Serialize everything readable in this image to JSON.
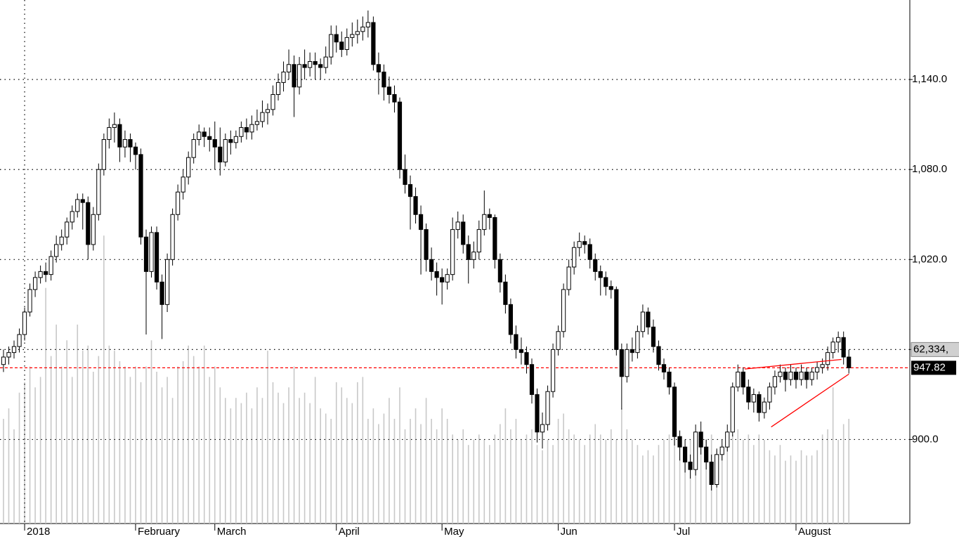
{
  "chart_data": {
    "type": "candlestick",
    "xlim": [
      -0.66,
      171.54
    ],
    "ylim": [
      844,
      1193
    ],
    "volume_lim": [
      0,
      100
    ],
    "xticks": [
      {
        "value": 4,
        "label": "2018"
      },
      {
        "value": 25,
        "label": "February"
      },
      {
        "value": 40,
        "label": "March"
      },
      {
        "value": 63,
        "label": "April"
      },
      {
        "value": 83,
        "label": "May"
      },
      {
        "value": 105,
        "label": "Jun"
      },
      {
        "value": 127,
        "label": "Jul"
      },
      {
        "value": 150,
        "label": "August"
      }
    ],
    "yticks": [
      {
        "value": 900,
        "label": "900.0"
      },
      {
        "value": 960
      },
      {
        "value": 1020,
        "label": "1,020.0"
      },
      {
        "value": 1080,
        "label": "1,080.0"
      },
      {
        "value": 1140,
        "label": "1,140.0"
      }
    ],
    "grid": true,
    "up_color": "#ffffff",
    "down_color": "#000000",
    "volume_color": "#c8c8c8",
    "line_color": "#ff0000",
    "volume_label": "62,334,",
    "candles": [
      [
        950,
        960,
        945,
        955
      ],
      [
        955,
        962,
        950,
        958
      ],
      [
        958,
        966,
        954,
        962
      ],
      [
        962,
        974,
        958,
        970
      ],
      [
        970,
        988,
        966,
        985
      ],
      [
        985,
        1004,
        982,
        1000
      ],
      [
        1000,
        1012,
        995,
        1008
      ],
      [
        1008,
        1016,
        1004,
        1012
      ],
      [
        1012,
        1018,
        1005,
        1010
      ],
      [
        1010,
        1026,
        1006,
        1022
      ],
      [
        1022,
        1036,
        1018,
        1030
      ],
      [
        1030,
        1040,
        1026,
        1035
      ],
      [
        1035,
        1048,
        1030,
        1045
      ],
      [
        1045,
        1056,
        1040,
        1052
      ],
      [
        1052,
        1064,
        1048,
        1060
      ],
      [
        1060,
        1064,
        1040,
        1058
      ],
      [
        1058,
        1062,
        1020,
        1030
      ],
      [
        1030,
        1055,
        1026,
        1050
      ],
      [
        1050,
        1084,
        1046,
        1080
      ],
      [
        1080,
        1104,
        1076,
        1100
      ],
      [
        1100,
        1114,
        1094,
        1108
      ],
      [
        1108,
        1118,
        1098,
        1110
      ],
      [
        1110,
        1114,
        1085,
        1095
      ],
      [
        1095,
        1106,
        1088,
        1100
      ],
      [
        1100,
        1104,
        1085,
        1095
      ],
      [
        1095,
        1098,
        1080,
        1090
      ],
      [
        1090,
        1094,
        1030,
        1035
      ],
      [
        1035,
        1040,
        970,
        1012
      ],
      [
        1012,
        1042,
        1008,
        1038
      ],
      [
        1038,
        1042,
        1000,
        1005
      ],
      [
        1005,
        1010,
        967,
        990
      ],
      [
        990,
        1024,
        985,
        1020
      ],
      [
        1020,
        1054,
        1016,
        1050
      ],
      [
        1050,
        1070,
        1046,
        1065
      ],
      [
        1065,
        1080,
        1060,
        1075
      ],
      [
        1075,
        1092,
        1070,
        1088
      ],
      [
        1088,
        1104,
        1084,
        1100
      ],
      [
        1100,
        1110,
        1096,
        1105
      ],
      [
        1105,
        1108,
        1095,
        1102
      ],
      [
        1102,
        1108,
        1092,
        1100
      ],
      [
        1100,
        1112,
        1080,
        1095
      ],
      [
        1095,
        1108,
        1076,
        1085
      ],
      [
        1085,
        1104,
        1082,
        1100
      ],
      [
        1100,
        1106,
        1090,
        1098
      ],
      [
        1098,
        1106,
        1094,
        1102
      ],
      [
        1102,
        1112,
        1098,
        1108
      ],
      [
        1108,
        1114,
        1100,
        1105
      ],
      [
        1105,
        1116,
        1100,
        1110
      ],
      [
        1110,
        1120,
        1106,
        1112
      ],
      [
        1112,
        1126,
        1108,
        1118
      ],
      [
        1118,
        1124,
        1110,
        1120
      ],
      [
        1120,
        1136,
        1116,
        1130
      ],
      [
        1130,
        1144,
        1126,
        1138
      ],
      [
        1138,
        1152,
        1132,
        1145
      ],
      [
        1145,
        1160,
        1140,
        1150
      ],
      [
        1150,
        1156,
        1115,
        1135
      ],
      [
        1135,
        1155,
        1130,
        1150
      ],
      [
        1150,
        1160,
        1140,
        1148
      ],
      [
        1148,
        1158,
        1142,
        1152
      ],
      [
        1152,
        1158,
        1140,
        1150
      ],
      [
        1150,
        1154,
        1140,
        1148
      ],
      [
        1148,
        1162,
        1144,
        1155
      ],
      [
        1155,
        1176,
        1150,
        1170
      ],
      [
        1170,
        1176,
        1158,
        1165
      ],
      [
        1165,
        1172,
        1155,
        1160
      ],
      [
        1160,
        1174,
        1156,
        1168
      ],
      [
        1168,
        1178,
        1162,
        1170
      ],
      [
        1170,
        1180,
        1164,
        1172
      ],
      [
        1172,
        1182,
        1166,
        1175
      ],
      [
        1175,
        1186,
        1168,
        1178
      ],
      [
        1178,
        1182,
        1146,
        1150
      ],
      [
        1150,
        1158,
        1130,
        1145
      ],
      [
        1145,
        1150,
        1126,
        1135
      ],
      [
        1135,
        1142,
        1124,
        1130
      ],
      [
        1130,
        1136,
        1118,
        1125
      ],
      [
        1125,
        1128,
        1074,
        1080
      ],
      [
        1080,
        1090,
        1064,
        1070
      ],
      [
        1070,
        1076,
        1040,
        1062
      ],
      [
        1062,
        1068,
        1044,
        1050
      ],
      [
        1050,
        1056,
        1010,
        1040
      ],
      [
        1040,
        1044,
        1012,
        1020
      ],
      [
        1020,
        1028,
        1006,
        1012
      ],
      [
        1012,
        1018,
        996,
        1008
      ],
      [
        1008,
        1014,
        990,
        1005
      ],
      [
        1005,
        1014,
        1000,
        1010
      ],
      [
        1010,
        1048,
        1006,
        1040
      ],
      [
        1040,
        1052,
        1034,
        1045
      ],
      [
        1045,
        1050,
        1024,
        1030
      ],
      [
        1030,
        1036,
        1004,
        1020
      ],
      [
        1020,
        1032,
        1014,
        1025
      ],
      [
        1025,
        1046,
        1020,
        1040
      ],
      [
        1040,
        1066,
        1036,
        1050
      ],
      [
        1050,
        1054,
        1040,
        1048
      ],
      [
        1048,
        1050,
        1014,
        1020
      ],
      [
        1020,
        1024,
        998,
        1005
      ],
      [
        1005,
        1010,
        984,
        990
      ],
      [
        990,
        994,
        964,
        970
      ],
      [
        970,
        976,
        954,
        960
      ],
      [
        960,
        968,
        950,
        958
      ],
      [
        958,
        962,
        944,
        950
      ],
      [
        950,
        954,
        924,
        930
      ],
      [
        930,
        934,
        898,
        905
      ],
      [
        905,
        918,
        894,
        910
      ],
      [
        910,
        936,
        906,
        932
      ],
      [
        932,
        964,
        928,
        960
      ],
      [
        960,
        976,
        956,
        972
      ],
      [
        972,
        1004,
        968,
        1000
      ],
      [
        1000,
        1020,
        996,
        1015
      ],
      [
        1015,
        1032,
        1010,
        1028
      ],
      [
        1028,
        1038,
        1022,
        1032
      ],
      [
        1032,
        1036,
        1024,
        1030
      ],
      [
        1030,
        1034,
        1014,
        1020
      ],
      [
        1020,
        1024,
        1006,
        1012
      ],
      [
        1012,
        1016,
        996,
        1008
      ],
      [
        1008,
        1012,
        996,
        1002
      ],
      [
        1002,
        1006,
        994,
        1000
      ],
      [
        1000,
        1002,
        956,
        960
      ],
      [
        960,
        964,
        920,
        942
      ],
      [
        942,
        964,
        938,
        960
      ],
      [
        960,
        968,
        952,
        958
      ],
      [
        958,
        976,
        954,
        972
      ],
      [
        972,
        990,
        968,
        985
      ],
      [
        985,
        988,
        970,
        975
      ],
      [
        975,
        980,
        958,
        962
      ],
      [
        962,
        966,
        946,
        950
      ],
      [
        950,
        954,
        940,
        945
      ],
      [
        945,
        948,
        930,
        935
      ],
      [
        935,
        938,
        896,
        902
      ],
      [
        902,
        906,
        886,
        895
      ],
      [
        895,
        900,
        878,
        885
      ],
      [
        885,
        890,
        874,
        880
      ],
      [
        880,
        910,
        876,
        905
      ],
      [
        905,
        912,
        890,
        895
      ],
      [
        895,
        900,
        880,
        885
      ],
      [
        885,
        890,
        866,
        870
      ],
      [
        870,
        894,
        868,
        890
      ],
      [
        890,
        900,
        886,
        895
      ],
      [
        895,
        910,
        892,
        905
      ],
      [
        905,
        938,
        902,
        935
      ],
      [
        935,
        950,
        932,
        945
      ],
      [
        945,
        948,
        930,
        935
      ],
      [
        935,
        940,
        920,
        925
      ],
      [
        925,
        934,
        918,
        930
      ],
      [
        930,
        932,
        912,
        918
      ],
      [
        918,
        928,
        914,
        925
      ],
      [
        925,
        938,
        920,
        935
      ],
      [
        935,
        946,
        930,
        942
      ],
      [
        942,
        950,
        938,
        945
      ],
      [
        945,
        948,
        932,
        940
      ],
      [
        940,
        950,
        936,
        945
      ],
      [
        945,
        948,
        934,
        940
      ],
      [
        940,
        950,
        936,
        945
      ],
      [
        945,
        948,
        934,
        940
      ],
      [
        940,
        948,
        936,
        945
      ],
      [
        945,
        952,
        940,
        948
      ],
      [
        948,
        954,
        944,
        950
      ],
      [
        950,
        962,
        946,
        958
      ],
      [
        958,
        968,
        954,
        965
      ],
      [
        965,
        972,
        958,
        968
      ],
      [
        968,
        972,
        950,
        955
      ],
      [
        955,
        960,
        944,
        947.82
      ]
    ],
    "volume": [
      20,
      22,
      18,
      25,
      27,
      30,
      26,
      28,
      45,
      32,
      38,
      30,
      35,
      28,
      38,
      33,
      34,
      29,
      32,
      55,
      34,
      33,
      31,
      30,
      28,
      30,
      27,
      30,
      35,
      29,
      26,
      28,
      24,
      30,
      31,
      34,
      32,
      30,
      34,
      28,
      30,
      26,
      24,
      22,
      24,
      23,
      25,
      22,
      26,
      24,
      33,
      27,
      25,
      23,
      26,
      30,
      24,
      25,
      23,
      28,
      22,
      21,
      20,
      27,
      26,
      24,
      23,
      27,
      28,
      20,
      22,
      19,
      21,
      24,
      20,
      26,
      18,
      20,
      22,
      19,
      24,
      20,
      18,
      22,
      20,
      17,
      16,
      18,
      15,
      16,
      17,
      16,
      15,
      17,
      19,
      22,
      18,
      20,
      16,
      17,
      18,
      15,
      14,
      16,
      15,
      20,
      21,
      18,
      17,
      16,
      15,
      17,
      19,
      17,
      16,
      18,
      16,
      22,
      18,
      16,
      15,
      13,
      14,
      13,
      15,
      16,
      17,
      18,
      15,
      14,
      16,
      13,
      17,
      16,
      17,
      14,
      15,
      16,
      17,
      18,
      16,
      17,
      15,
      17,
      16,
      14,
      13,
      15,
      12,
      13,
      12,
      14,
      13,
      13,
      14,
      17,
      18,
      26,
      16,
      19,
      20
    ],
    "trendlines": [
      {
        "x": [
          140.3,
          158.6
        ],
        "y": [
          947,
          953.4
        ]
      },
      {
        "x": [
          145.3,
          160
        ],
        "y": [
          908.4,
          943.6
        ]
      }
    ]
  }
}
